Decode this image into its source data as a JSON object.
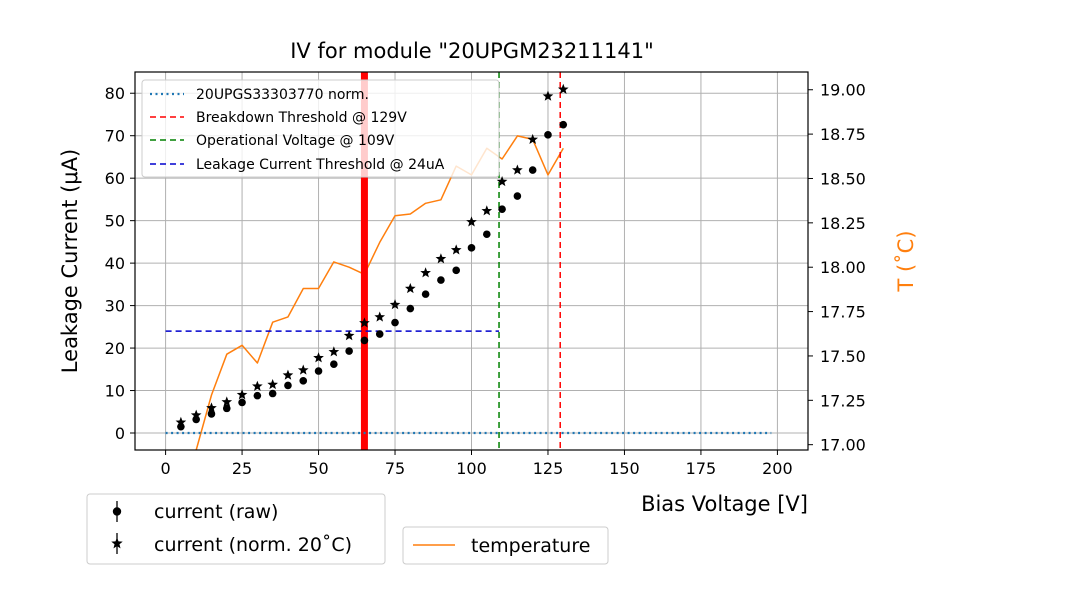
{
  "chart_data": {
    "type": "scatter",
    "title": "IV for module \"20UPGM23211141\"",
    "xlabel": "Bias Voltage [V]",
    "ylabel": "Leakage Current (μA)",
    "y2label": "T (˚C)",
    "xlim": [
      -10,
      210
    ],
    "ylim": [
      -4,
      85
    ],
    "y2lim": [
      16.97,
      19.1
    ],
    "x_ticks": [
      0,
      25,
      50,
      75,
      100,
      125,
      150,
      175,
      200
    ],
    "y_ticks": [
      0,
      10,
      20,
      30,
      40,
      50,
      60,
      70,
      80
    ],
    "y2_ticks": [
      17.0,
      17.25,
      17.5,
      17.75,
      18.0,
      18.25,
      18.5,
      18.75,
      19.0
    ],
    "y2_tick_labels": [
      "17.00",
      "17.25",
      "17.50",
      "17.75",
      "18.00",
      "18.25",
      "18.50",
      "18.75",
      "19.00"
    ],
    "grid": true,
    "series": [
      {
        "name": "current (raw)",
        "marker": "circle",
        "x": [
          5,
          10,
          15,
          20,
          25,
          30,
          35,
          40,
          45,
          50,
          55,
          60,
          65,
          70,
          75,
          80,
          85,
          90,
          95,
          100,
          105,
          110,
          115,
          120,
          125,
          130
        ],
        "values": [
          1.5,
          3.2,
          4.5,
          5.8,
          7.2,
          8.8,
          9.3,
          11.2,
          12.3,
          14.6,
          16.2,
          19.3,
          21.8,
          23.3,
          26.0,
          29.3,
          32.7,
          36.0,
          38.3,
          43.6,
          46.8,
          52.7,
          55.8,
          61.9,
          70.2,
          72.6
        ]
      },
      {
        "name": "current (norm. 20˚C)",
        "marker": "star",
        "x": [
          5,
          10,
          15,
          20,
          25,
          30,
          35,
          40,
          45,
          50,
          55,
          60,
          65,
          70,
          75,
          80,
          85,
          90,
          95,
          100,
          105,
          110,
          115,
          120,
          125,
          130
        ],
        "values": [
          2.5,
          4.2,
          5.9,
          7.3,
          9.0,
          11.0,
          11.4,
          13.6,
          14.8,
          17.7,
          19.1,
          22.9,
          25.9,
          27.3,
          30.2,
          34.0,
          37.7,
          41.0,
          43.1,
          49.7,
          52.3,
          59.2,
          61.9,
          69.1,
          79.3,
          80.9
        ]
      },
      {
        "name": "temperature",
        "axis": "right",
        "color": "#ff7f0e",
        "x": [
          10,
          15,
          20,
          25,
          30,
          35,
          40,
          45,
          50,
          55,
          60,
          65,
          70,
          75,
          80,
          85,
          90,
          95,
          100,
          105,
          110,
          115,
          120,
          125,
          130
        ],
        "values": [
          16.97,
          17.28,
          17.51,
          17.56,
          17.46,
          17.69,
          17.72,
          17.88,
          17.88,
          18.03,
          18.0,
          17.96,
          18.14,
          18.29,
          18.3,
          18.36,
          18.38,
          18.57,
          18.52,
          18.67,
          18.61,
          18.74,
          18.72,
          18.52,
          18.67
        ]
      }
    ],
    "reference_lines": [
      {
        "name": "20UPGS33303770 norm.",
        "orientation": "horizontal",
        "value": 0,
        "from": 0,
        "to": 198,
        "style": "dotted",
        "color": "#1f77b4"
      },
      {
        "name": "Breakdown Threshold @ 129V",
        "orientation": "vertical",
        "value": 129,
        "style": "dashed",
        "color": "#ff0000"
      },
      {
        "name": "Operational Voltage @ 109V",
        "orientation": "vertical",
        "value": 109,
        "style": "dashed",
        "color": "#008000"
      },
      {
        "name": "Leakage Current Threshold @ 24uA",
        "orientation": "horizontal",
        "value": 24,
        "from": 0,
        "to": 109,
        "style": "dashed",
        "color": "#0000cd"
      }
    ],
    "highlight_band": {
      "x": 65,
      "color": "#ff0000"
    },
    "legend_inner": [
      "20UPGS33303770 norm.",
      "Breakdown Threshold @ 129V",
      "Operational Voltage @ 109V",
      "Leakage Current Threshold @ 24uA"
    ],
    "legend_current": [
      "current (raw)",
      "current (norm. 20˚C)"
    ],
    "legend_temperature": [
      "temperature"
    ]
  }
}
